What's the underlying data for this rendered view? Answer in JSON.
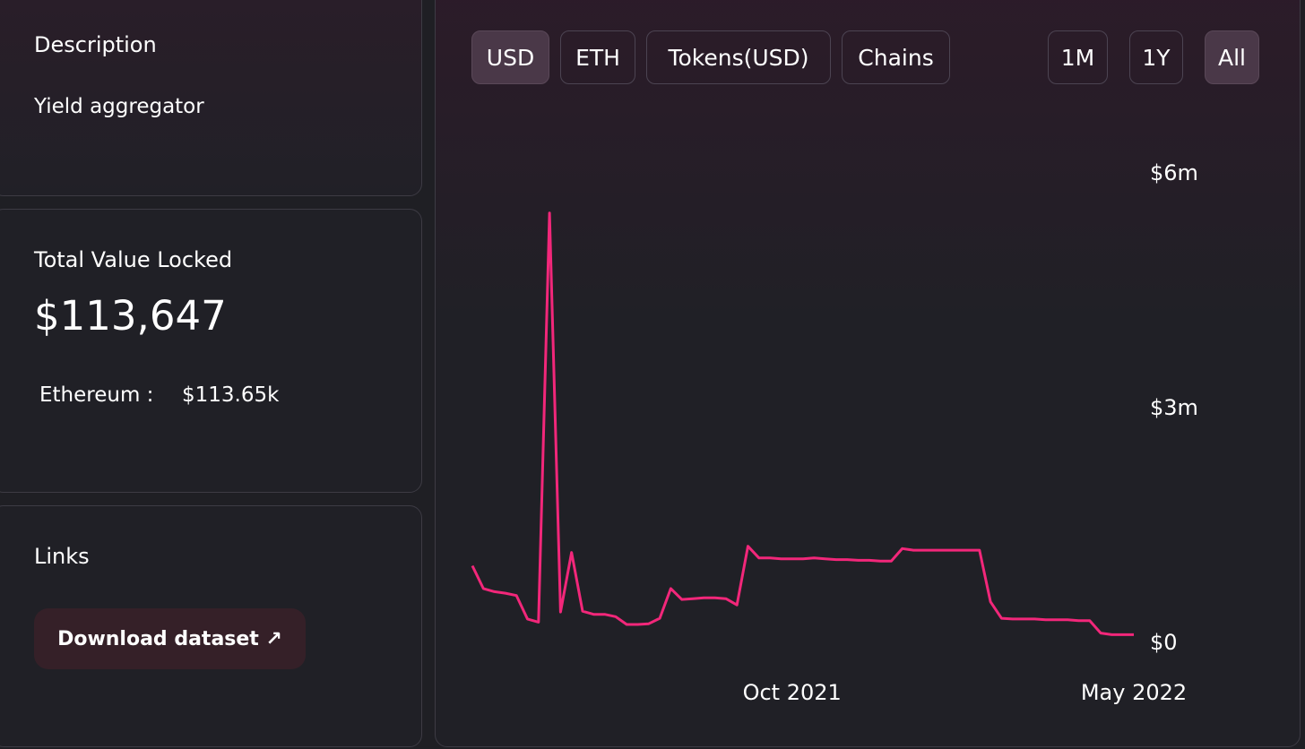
{
  "sidebar": {
    "description_title": "Description",
    "description": "Yield aggregator",
    "tvl_title": "Total Value Locked",
    "tvl": "$113,647",
    "chain_name": "Ethereum :",
    "chain_value": "$113.65k",
    "links_title": "Links",
    "download": "Download dataset ↗"
  },
  "buttons": [
    "USD",
    "ETH",
    "Tokens(USD)",
    "Chains"
  ],
  "range_buttons": [
    "1M",
    "1Y",
    "All"
  ],
  "chart_data": {
    "type": "line",
    "color": "#f2277a",
    "grid": false,
    "categories": [
      null,
      null,
      null,
      null,
      null,
      null,
      null,
      null,
      null,
      null,
      null,
      null,
      null,
      null,
      null,
      null,
      null,
      null,
      null,
      null,
      null,
      null,
      null,
      null,
      null,
      null,
      null,
      null,
      null,
      "Oct 2021",
      null,
      null,
      null,
      null,
      null,
      null,
      null,
      null,
      null,
      null,
      null,
      null,
      null,
      null,
      null,
      null,
      null,
      null,
      null,
      null,
      null,
      null,
      null,
      null,
      null,
      null,
      null,
      null,
      null,
      null,
      "May 2022"
    ],
    "values": [
      990000,
      700000,
      660000,
      640000,
      610000,
      310000,
      270000,
      5500000,
      400000,
      1160000,
      410000,
      370000,
      370000,
      340000,
      240000,
      240000,
      250000,
      320000,
      700000,
      560000,
      570000,
      580000,
      580000,
      570000,
      490000,
      1240000,
      1090000,
      1090000,
      1080000,
      1080000,
      1080000,
      1090000,
      1080000,
      1070000,
      1070000,
      1060000,
      1060000,
      1050000,
      1050000,
      1210000,
      1190000,
      1190000,
      1190000,
      1190000,
      1190000,
      1190000,
      1190000,
      530000,
      320000,
      310000,
      310000,
      310000,
      300000,
      300000,
      300000,
      290000,
      290000,
      130000,
      110000,
      110000,
      110000
    ],
    "ylim": [
      0,
      6000000
    ],
    "yticks": [
      {
        "value": 0,
        "label": "$0"
      },
      {
        "value": 3000000,
        "label": "$3m"
      },
      {
        "value": 6000000,
        "label": "$6m"
      }
    ]
  }
}
